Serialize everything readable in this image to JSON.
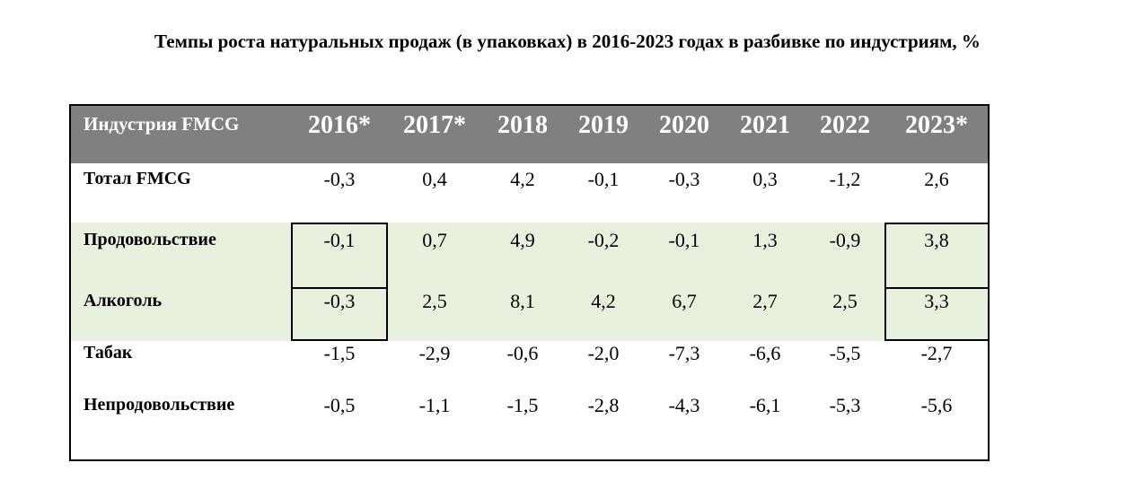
{
  "title": "Темпы роста натуральных продаж (в упаковках) в 2016-2023 годах в разбивке по индустриям, %",
  "chart_data": {
    "type": "table",
    "header_label": "Индустрия FMCG",
    "columns": [
      "2016*",
      "2017*",
      "2018",
      "2019",
      "2020",
      "2021",
      "2022",
      "2023*"
    ],
    "rows": [
      {
        "label": "Тотал FMCG",
        "values": [
          "-0,3",
          "0,4",
          "4,2",
          "-0,1",
          "-0,3",
          "0,3",
          "-1,2",
          "2,6"
        ]
      },
      {
        "label": "Продовольствие",
        "values": [
          "-0,1",
          "0,7",
          "4,9",
          "-0,2",
          "-0,1",
          "1,3",
          "-0,9",
          "3,8"
        ]
      },
      {
        "label": "Алкоголь",
        "values": [
          "-0,3",
          "2,5",
          "8,1",
          "4,2",
          "6,7",
          "2,7",
          "2,5",
          "3,3"
        ]
      },
      {
        "label": "Табак",
        "values": [
          "-1,5",
          "-2,9",
          "-0,6",
          "-2,0",
          "-7,3",
          "-6,6",
          "-5,5",
          "-2,7"
        ]
      },
      {
        "label": "Непродовольствие",
        "values": [
          "-0,5",
          "-1,1",
          "-1,5",
          "-2,8",
          "-4,3",
          "-6,1",
          "-5,3",
          "-5,6"
        ]
      }
    ],
    "highlight_rows": [
      1,
      2
    ],
    "boxed_columns": [
      0,
      7
    ],
    "colors": {
      "header_bg": "#808080",
      "header_text": "#ffffff",
      "highlight_bg": "#e8f1de",
      "border": "#000000"
    }
  }
}
